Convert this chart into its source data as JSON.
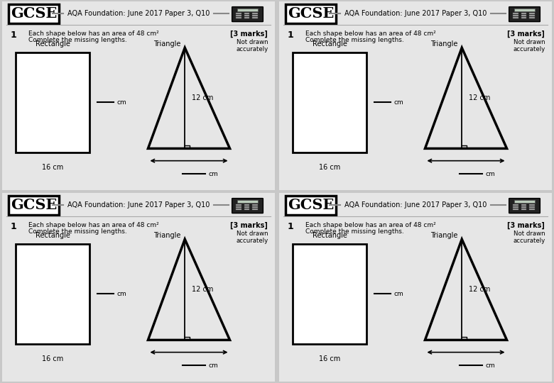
{
  "title": "AQA Foundation: June 2017 Paper 3, Q10",
  "gcse_text": "GCSE",
  "question_number": "1",
  "question_text_line1": "Each shape below has an area of 48 cm²",
  "question_text_line2": "Complete the missing lengths.",
  "marks_text": "[3 marks]",
  "not_drawn_line1": "Not drawn",
  "not_drawn_line2": "accurately",
  "rectangle_label": "Rectangle",
  "triangle_label": "Triangle",
  "rect_bottom_label": "16 cm",
  "tri_height_label": "12 cm",
  "bg_color": "#c8c8c8",
  "panel_bg": "#e0e0e0",
  "panel_border": "#999999"
}
